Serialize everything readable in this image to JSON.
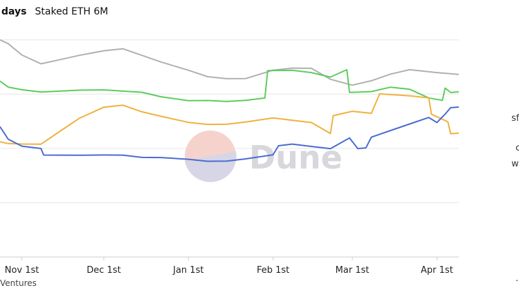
{
  "header": {
    "days_label": "days",
    "tab_label": "Staked ETH 6M"
  },
  "footer": {
    "source_fragment": "Ventures"
  },
  "watermark": {
    "text": "Dune"
  },
  "side_panel": {
    "line1": "sf",
    "line2": "c",
    "line3": "w",
    "bullet": "·"
  },
  "colors": {
    "gray": "#b0b0b0",
    "green": "#5ccd5c",
    "orange": "#f0b13c",
    "blue": "#4a6bd1",
    "grid": "#e6e6e6"
  },
  "chart_data": {
    "type": "line",
    "x_tick_labels": [
      "Nov 1st",
      "Dec 1st",
      "Jan 1st",
      "Feb 1st",
      "Mar 1st",
      "Apr 1st"
    ],
    "x_tick_dates": [
      "2023-11-01",
      "2023-12-01",
      "2024-01-01",
      "2024-02-01",
      "2024-03-01",
      "2024-04-01"
    ],
    "x_range": [
      "2023-10-24",
      "2024-04-09"
    ],
    "y_axis_labels_visible": false,
    "grid": true,
    "series": [
      {
        "color_key": "gray",
        "points": [
          [
            "2023-10-24",
            100
          ],
          [
            "2023-10-27",
            98
          ],
          [
            "2023-11-01",
            93
          ],
          [
            "2023-11-08",
            89
          ],
          [
            "2023-11-15",
            91
          ],
          [
            "2023-11-22",
            93
          ],
          [
            "2023-12-01",
            95
          ],
          [
            "2023-12-08",
            96
          ],
          [
            "2023-12-15",
            93
          ],
          [
            "2023-12-22",
            90
          ],
          [
            "2024-01-01",
            86
          ],
          [
            "2024-01-08",
            83
          ],
          [
            "2024-01-15",
            82
          ],
          [
            "2024-01-22",
            82
          ],
          [
            "2024-02-01",
            86
          ],
          [
            "2024-02-08",
            87
          ],
          [
            "2024-02-15",
            87
          ],
          [
            "2024-02-22",
            82
          ],
          [
            "2024-03-01",
            79
          ],
          [
            "2024-03-08",
            81
          ],
          [
            "2024-03-15",
            84
          ],
          [
            "2024-03-22",
            86
          ],
          [
            "2024-04-01",
            85
          ],
          [
            "2024-04-09",
            84
          ]
        ]
      },
      {
        "color_key": "green",
        "points": [
          [
            "2023-10-24",
            81
          ],
          [
            "2023-10-27",
            78
          ],
          [
            "2023-11-01",
            77
          ],
          [
            "2023-11-08",
            76
          ],
          [
            "2023-11-15",
            76.5
          ],
          [
            "2023-11-22",
            77
          ],
          [
            "2023-12-01",
            77
          ],
          [
            "2023-12-08",
            76.5
          ],
          [
            "2023-12-15",
            76
          ],
          [
            "2023-12-22",
            74
          ],
          [
            "2024-01-01",
            72
          ],
          [
            "2024-01-08",
            72
          ],
          [
            "2024-01-15",
            71.5
          ],
          [
            "2024-01-22",
            72
          ],
          [
            "2024-01-29",
            73
          ],
          [
            "2024-01-30",
            86
          ],
          [
            "2024-02-08",
            86
          ],
          [
            "2024-02-15",
            85
          ],
          [
            "2024-02-22",
            83
          ],
          [
            "2024-02-28",
            86
          ],
          [
            "2024-02-29",
            76
          ],
          [
            "2024-03-08",
            76
          ],
          [
            "2024-03-15",
            78
          ],
          [
            "2024-03-22",
            77
          ],
          [
            "2024-03-29",
            73
          ],
          [
            "2024-04-03",
            72
          ],
          [
            "2024-04-04",
            78
          ],
          [
            "2024-04-06",
            76
          ],
          [
            "2024-04-09",
            76
          ]
        ]
      },
      {
        "color_key": "orange",
        "points": [
          [
            "2023-10-24",
            53
          ],
          [
            "2023-10-27",
            52
          ],
          [
            "2023-11-01",
            52
          ],
          [
            "2023-11-08",
            52
          ],
          [
            "2023-11-15",
            58
          ],
          [
            "2023-11-22",
            64
          ],
          [
            "2023-12-01",
            69
          ],
          [
            "2023-12-08",
            70
          ],
          [
            "2023-12-15",
            67
          ],
          [
            "2023-12-22",
            65
          ],
          [
            "2024-01-01",
            62
          ],
          [
            "2024-01-08",
            61
          ],
          [
            "2024-01-15",
            61
          ],
          [
            "2024-01-22",
            62
          ],
          [
            "2024-02-01",
            64
          ],
          [
            "2024-02-08",
            63
          ],
          [
            "2024-02-15",
            62
          ],
          [
            "2024-02-22",
            57
          ],
          [
            "2024-02-23",
            65
          ],
          [
            "2024-03-01",
            67
          ],
          [
            "2024-03-08",
            66
          ],
          [
            "2024-03-11",
            75
          ],
          [
            "2024-03-22",
            74
          ],
          [
            "2024-03-29",
            73
          ],
          [
            "2024-03-30",
            66
          ],
          [
            "2024-04-05",
            62
          ],
          [
            "2024-04-06",
            57
          ],
          [
            "2024-04-09",
            57
          ]
        ]
      },
      {
        "color_key": "blue",
        "points": [
          [
            "2023-10-24",
            60
          ],
          [
            "2023-10-27",
            54
          ],
          [
            "2023-11-01",
            51
          ],
          [
            "2023-11-08",
            50
          ],
          [
            "2023-11-09",
            47
          ],
          [
            "2023-11-15",
            47
          ],
          [
            "2023-11-22",
            47
          ],
          [
            "2023-12-01",
            47
          ],
          [
            "2023-12-08",
            47
          ],
          [
            "2023-12-15",
            46
          ],
          [
            "2023-12-22",
            46
          ],
          [
            "2024-01-01",
            45
          ],
          [
            "2024-01-08",
            44
          ],
          [
            "2024-01-15",
            44
          ],
          [
            "2024-01-22",
            45
          ],
          [
            "2024-02-01",
            47
          ],
          [
            "2024-02-03",
            51
          ],
          [
            "2024-02-08",
            52
          ],
          [
            "2024-02-15",
            51
          ],
          [
            "2024-02-22",
            50
          ],
          [
            "2024-02-29",
            55
          ],
          [
            "2024-03-03",
            50
          ],
          [
            "2024-03-06",
            50
          ],
          [
            "2024-03-08",
            55
          ],
          [
            "2024-03-15",
            58
          ],
          [
            "2024-03-22",
            61
          ],
          [
            "2024-03-29",
            64
          ],
          [
            "2024-04-01",
            62
          ],
          [
            "2024-04-04",
            66
          ],
          [
            "2024-04-06",
            69
          ],
          [
            "2024-04-09",
            69
          ]
        ]
      }
    ]
  }
}
